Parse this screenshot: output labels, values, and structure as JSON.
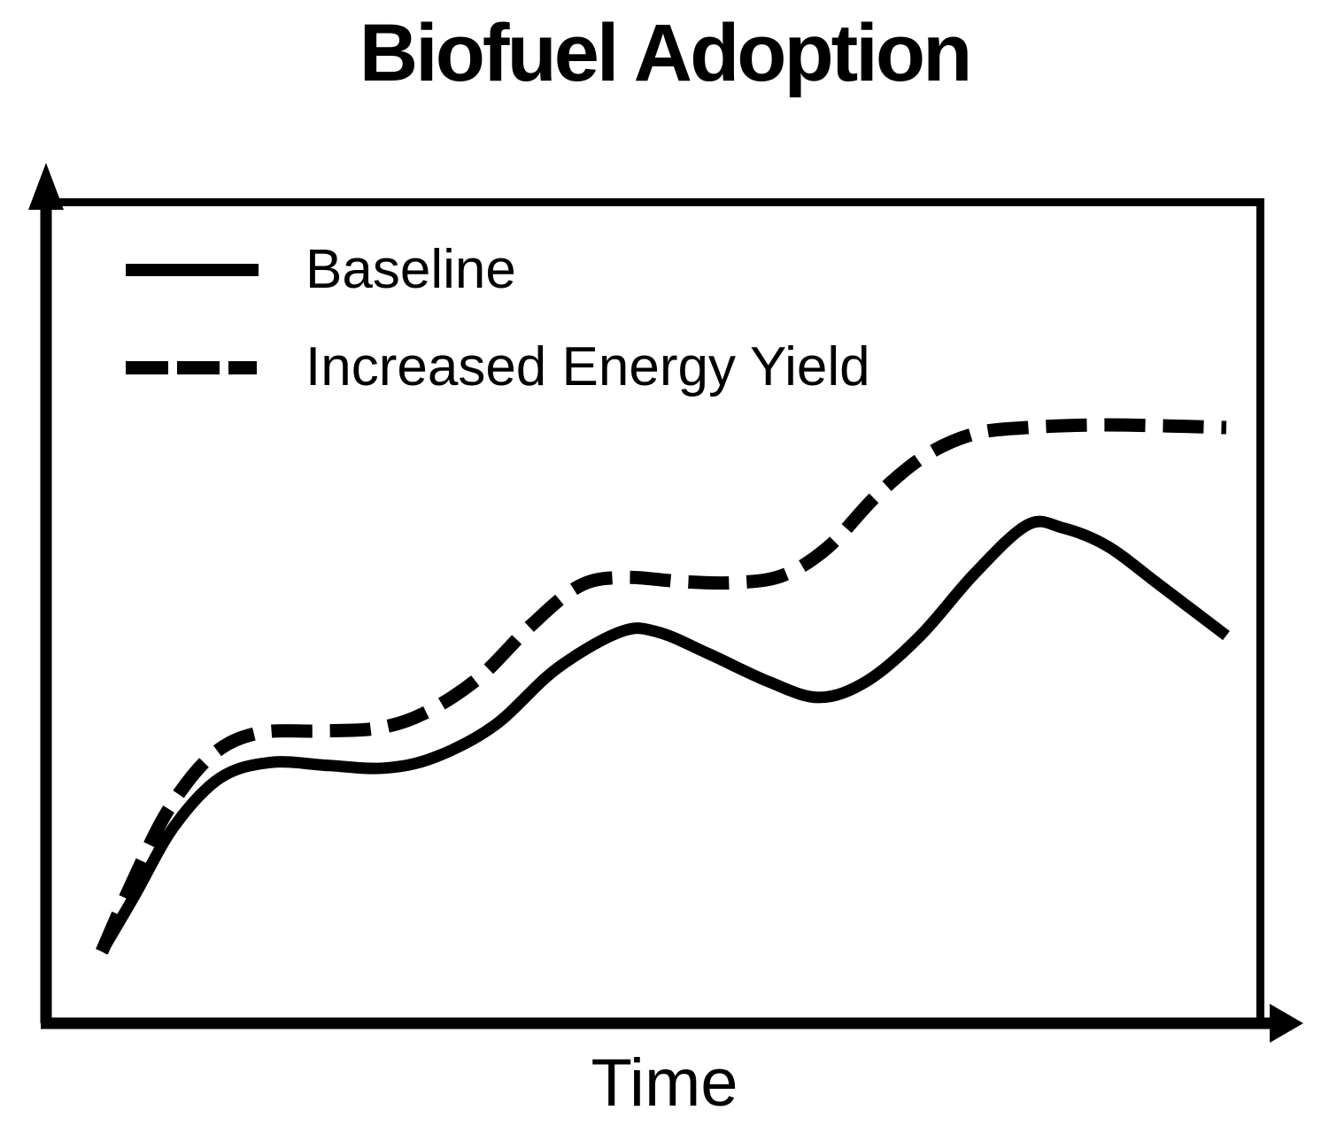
{
  "title": "Biofuel Adoption",
  "x_axis_label": "Time",
  "colors": {
    "ink": "#000000",
    "background": "#ffffff"
  },
  "chart_data": {
    "type": "line",
    "title": "Biofuel Adoption",
    "xlabel": "Time",
    "ylabel": "",
    "x_range": [
      0,
      1
    ],
    "y_range": [
      0,
      1
    ],
    "grid": false,
    "ticks": "none",
    "legend_position": "top-left-inside",
    "axes_style": "framed box with arrowheads on y-axis top and x-axis right",
    "series": [
      {
        "name": "Baseline",
        "style": "solid",
        "points": [
          [
            0.0,
            0.0
          ],
          [
            0.029,
            0.106
          ],
          [
            0.064,
            0.238
          ],
          [
            0.105,
            0.331
          ],
          [
            0.15,
            0.361
          ],
          [
            0.202,
            0.355
          ],
          [
            0.25,
            0.35
          ],
          [
            0.295,
            0.37
          ],
          [
            0.349,
            0.431
          ],
          [
            0.404,
            0.539
          ],
          [
            0.461,
            0.61
          ],
          [
            0.494,
            0.61
          ],
          [
            0.539,
            0.569
          ],
          [
            0.593,
            0.515
          ],
          [
            0.638,
            0.485
          ],
          [
            0.681,
            0.517
          ],
          [
            0.728,
            0.603
          ],
          [
            0.776,
            0.721
          ],
          [
            0.823,
            0.814
          ],
          [
            0.854,
            0.809
          ],
          [
            0.894,
            0.774
          ],
          [
            0.941,
            0.699
          ],
          [
            1.0,
            0.603
          ]
        ]
      },
      {
        "name": "Increased Energy Yield",
        "style": "dashed",
        "points": [
          [
            0.0,
            0.0
          ],
          [
            0.026,
            0.127
          ],
          [
            0.059,
            0.27
          ],
          [
            0.098,
            0.375
          ],
          [
            0.139,
            0.417
          ],
          [
            0.193,
            0.421
          ],
          [
            0.244,
            0.426
          ],
          [
            0.286,
            0.454
          ],
          [
            0.335,
            0.522
          ],
          [
            0.382,
            0.623
          ],
          [
            0.425,
            0.698
          ],
          [
            0.465,
            0.714
          ],
          [
            0.516,
            0.706
          ],
          [
            0.563,
            0.704
          ],
          [
            0.606,
            0.718
          ],
          [
            0.646,
            0.772
          ],
          [
            0.689,
            0.87
          ],
          [
            0.732,
            0.946
          ],
          [
            0.776,
            0.988
          ],
          [
            0.823,
            1.0
          ],
          [
            0.886,
            1.005
          ],
          [
            0.949,
            1.003
          ],
          [
            1.0,
            1.0
          ]
        ]
      }
    ]
  }
}
